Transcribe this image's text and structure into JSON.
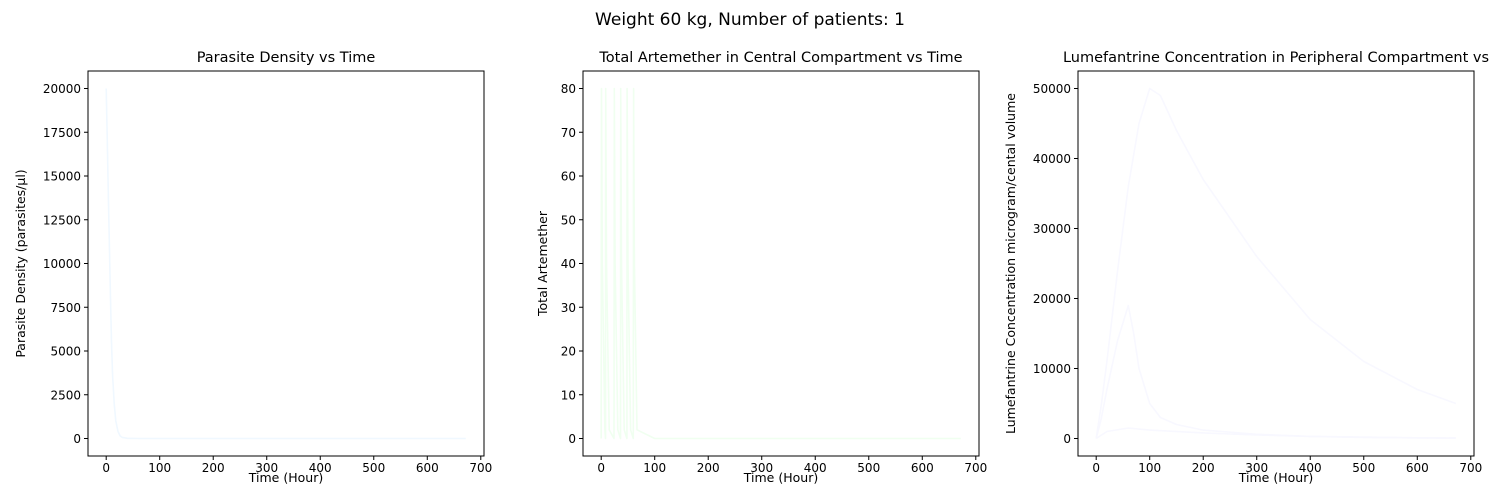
{
  "figure": {
    "suptitle": "Weight 60 kg, Number of patients: 1"
  },
  "chart_data": [
    {
      "type": "line",
      "title": "Parasite Density vs Time",
      "xlabel": "Time (Hour)",
      "ylabel": "Parasite Density (parasites/μl)",
      "xlim": [
        -34,
        706
      ],
      "ylim": [
        -1000,
        21000
      ],
      "xticks": [
        0,
        100,
        200,
        300,
        400,
        500,
        600,
        700
      ],
      "yticks": [
        0,
        2500,
        5000,
        7500,
        10000,
        12500,
        15000,
        17500,
        20000
      ],
      "grid": false,
      "series": [
        {
          "color": "#f0f8ff",
          "x": [
            0,
            2,
            4,
            6,
            8,
            10,
            12,
            15,
            18,
            22,
            26,
            30,
            40,
            60,
            100,
            200,
            300,
            400,
            500,
            600,
            672
          ],
          "y": [
            20000,
            17000,
            14000,
            11000,
            8000,
            5500,
            3600,
            2000,
            1000,
            400,
            150,
            60,
            10,
            0,
            0,
            0,
            0,
            0,
            0,
            0,
            0
          ]
        }
      ]
    },
    {
      "type": "line",
      "title": "Total Artemether in Central Compartment vs Time",
      "xlabel": "Time (Hour)",
      "ylabel": "Total Artemether",
      "xlim": [
        -34,
        706
      ],
      "ylim": [
        -4,
        84
      ],
      "xticks": [
        0,
        100,
        200,
        300,
        400,
        500,
        600,
        700
      ],
      "yticks": [
        0,
        10,
        20,
        30,
        40,
        50,
        60,
        70,
        80
      ],
      "grid": false,
      "series": [
        {
          "color": "#f0fff0",
          "x": [
            0,
            0.5,
            2,
            7,
            8,
            8.5,
            10,
            15,
            24,
            24.5,
            26,
            31,
            36,
            36.5,
            38,
            43,
            48,
            48.5,
            50,
            55,
            60,
            60.5,
            62,
            67,
            100,
            200,
            300,
            400,
            500,
            600,
            672
          ],
          "y": [
            0,
            80,
            40,
            2,
            0,
            80,
            40,
            2,
            0,
            80,
            40,
            2,
            0,
            80,
            40,
            2,
            0,
            80,
            40,
            2,
            0,
            80,
            40,
            2,
            0,
            0,
            0,
            0,
            0,
            0,
            0
          ]
        }
      ]
    },
    {
      "type": "line",
      "title": "Lumefantrine Concentration in Peripheral Compartment vs",
      "xlabel": "Time (Hour)",
      "ylabel": "Lumefantrine Concentration microgram/cental volume",
      "xlim": [
        -34,
        706
      ],
      "ylim": [
        -2500,
        52500
      ],
      "xticks": [
        0,
        100,
        200,
        300,
        400,
        500,
        600,
        700
      ],
      "yticks": [
        0,
        10000,
        20000,
        30000,
        40000,
        50000
      ],
      "grid": false,
      "series": [
        {
          "color": "#f8f8ff",
          "x": [
            0,
            10,
            20,
            40,
            60,
            80,
            100,
            120,
            150,
            200,
            300,
            400,
            500,
            600,
            672
          ],
          "y": [
            0,
            5000,
            11000,
            24000,
            36000,
            45000,
            50000,
            49000,
            44000,
            37000,
            26000,
            17000,
            11000,
            7000,
            5000
          ]
        },
        {
          "color": "#f8f8ff",
          "x": [
            0,
            10,
            20,
            40,
            60,
            70,
            80,
            100,
            120,
            150,
            200,
            300,
            400,
            500,
            600,
            672
          ],
          "y": [
            0,
            3000,
            7000,
            14000,
            19000,
            15000,
            10000,
            5000,
            3000,
            2000,
            1200,
            600,
            300,
            150,
            80,
            50
          ]
        },
        {
          "color": "#f8f8ff",
          "x": [
            0,
            20,
            60,
            100,
            200,
            300,
            400,
            500,
            600,
            672
          ],
          "y": [
            0,
            1000,
            1500,
            1200,
            800,
            500,
            300,
            200,
            100,
            50
          ]
        }
      ]
    }
  ]
}
